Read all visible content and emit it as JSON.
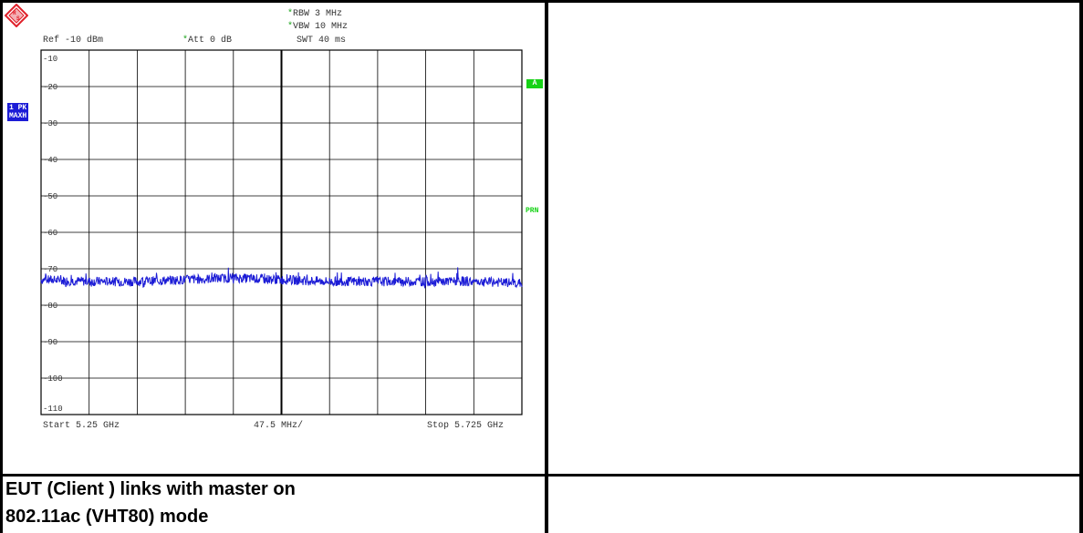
{
  "instrument": {
    "rbw": "RBW 3 MHz",
    "vbw": "VBW 10 MHz",
    "ref": "Ref -10 dBm",
    "att": "Att  0 dB",
    "swt": "SWT 40 ms",
    "star": "*",
    "trace_badge_line1": "1 PK",
    "trace_badge_line2": "MAXH",
    "marker_badge": "A",
    "prn_label": "PRN"
  },
  "caption": {
    "line1": "EUT (Client ) links with master on",
    "line2": "802.11ac (VHT80) mode"
  },
  "colors": {
    "trace": "#1c1cd6",
    "grid": "#000000",
    "accent_green": "#16d216",
    "logo_red": "#e0202a"
  },
  "chart_data": {
    "type": "line",
    "title": "",
    "xlabel": "",
    "ylabel": "",
    "x_start_label": "Start 5.25 GHz",
    "x_div_label": "47.5 MHz/",
    "x_stop_label": "Stop 5.725 GHz",
    "xlim": [
      5.25,
      5.725
    ],
    "ylim": [
      -110,
      -10
    ],
    "yticks": [
      "-10",
      "-20",
      "-30",
      "-40",
      "-50",
      "-60",
      "-70",
      "-80",
      "-90",
      "-100",
      "-110"
    ],
    "grid": true,
    "series": [
      {
        "x": [
          5.25,
          5.2975,
          5.345,
          5.3925,
          5.44,
          5.4875,
          5.535,
          5.5825,
          5.63,
          5.6775,
          5.725
        ],
        "y": [
          -73,
          -73.5,
          -73.5,
          -73,
          -72.5,
          -73,
          -73.5,
          -73.5,
          -73.5,
          -73.5,
          -74
        ]
      }
    ]
  }
}
